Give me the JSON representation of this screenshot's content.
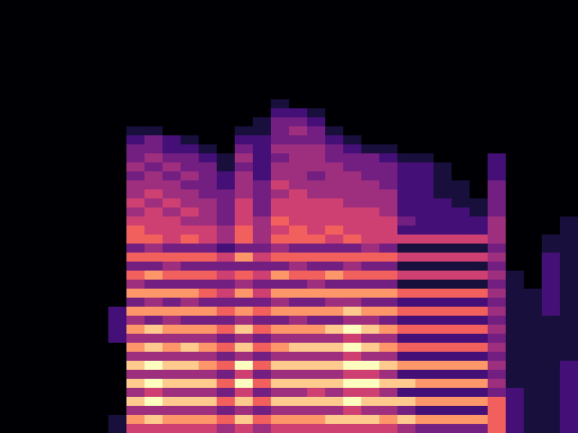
{
  "chart_data": {
    "type": "heatmap",
    "tick_labels": false,
    "zlim": [
      0,
      9
    ],
    "cells": [
      [
        0,
        0,
        0,
        0,
        0,
        0,
        0,
        0,
        0,
        0,
        0,
        0,
        0,
        0,
        0,
        0,
        0,
        0,
        0,
        0,
        0,
        0,
        0,
        0,
        0,
        0,
        0,
        0,
        0,
        0,
        0,
        0
      ],
      [
        0,
        0,
        0,
        0,
        0,
        0,
        0,
        0,
        0,
        0,
        0,
        0,
        0,
        0,
        0,
        0,
        0,
        0,
        0,
        0,
        0,
        0,
        0,
        0,
        0,
        0,
        0,
        0,
        0,
        0,
        0,
        0
      ],
      [
        0,
        0,
        0,
        0,
        0,
        0,
        0,
        0,
        0,
        0,
        0,
        0,
        0,
        0,
        0,
        0,
        0,
        0,
        0,
        0,
        0,
        0,
        0,
        0,
        0,
        0,
        0,
        0,
        0,
        0,
        0,
        0
      ],
      [
        0,
        0,
        0,
        0,
        0,
        0,
        0,
        0,
        0,
        0,
        0,
        0,
        0,
        0,
        0,
        0,
        0,
        0,
        0,
        0,
        0,
        0,
        0,
        0,
        0,
        0,
        0,
        0,
        0,
        0,
        0,
        0
      ],
      [
        0,
        0,
        0,
        0,
        0,
        0,
        0,
        0,
        0,
        0,
        0,
        0,
        0,
        0,
        0,
        0,
        0,
        0,
        0,
        0,
        0,
        0,
        0,
        0,
        0,
        0,
        0,
        0,
        0,
        0,
        0,
        0
      ],
      [
        0,
        0,
        0,
        0,
        0,
        0,
        0,
        0,
        0,
        0,
        0,
        0,
        0,
        0,
        0,
        0,
        0,
        0,
        0,
        0,
        0,
        0,
        0,
        0,
        0,
        0,
        0,
        0,
        0,
        0,
        0,
        0
      ],
      [
        0,
        0,
        0,
        0,
        0,
        0,
        0,
        0,
        0,
        0,
        0,
        0,
        0,
        0,
        0,
        0,
        0,
        0,
        0,
        0,
        0,
        0,
        0,
        0,
        0,
        0,
        0,
        0,
        0,
        0,
        0,
        0
      ],
      [
        0,
        0,
        0,
        0,
        0,
        0,
        0,
        0,
        0,
        0,
        0,
        0,
        0,
        0,
        0,
        0,
        0,
        0,
        0,
        0,
        0,
        0,
        0,
        0,
        0,
        0,
        0,
        0,
        0,
        0,
        0,
        0
      ],
      [
        0,
        0,
        0,
        0,
        0,
        0,
        0,
        0,
        0,
        0,
        0,
        0,
        0,
        0,
        0,
        0,
        0,
        0,
        0,
        0,
        0,
        0,
        0,
        0,
        0,
        0,
        0,
        0,
        0,
        0,
        0,
        0
      ],
      [
        0,
        0,
        0,
        0,
        0,
        0,
        0,
        0,
        0,
        0,
        0,
        0,
        0,
        0,
        0,
        0,
        0,
        0,
        0,
        0,
        0,
        0,
        0,
        0,
        0,
        0,
        0,
        0,
        0,
        0,
        0,
        0
      ],
      [
        0,
        0,
        0,
        0,
        0,
        0,
        0,
        0,
        0,
        0,
        0,
        0,
        0,
        0,
        0,
        0,
        0,
        0,
        0,
        0,
        0,
        0,
        0,
        0,
        0,
        0,
        0,
        0,
        0,
        0,
        0,
        0
      ],
      [
        0,
        0,
        0,
        0,
        0,
        0,
        0,
        0,
        0,
        0,
        0,
        0,
        0,
        0,
        0,
        1,
        0,
        0,
        0,
        0,
        0,
        0,
        0,
        0,
        0,
        0,
        0,
        0,
        0,
        0,
        0,
        0
      ],
      [
        0,
        0,
        0,
        0,
        0,
        0,
        0,
        0,
        0,
        0,
        0,
        0,
        0,
        0,
        0,
        2,
        2,
        1,
        0,
        0,
        0,
        0,
        0,
        0,
        0,
        0,
        0,
        0,
        0,
        0,
        0,
        0
      ],
      [
        0,
        0,
        0,
        0,
        0,
        0,
        0,
        0,
        0,
        0,
        0,
        0,
        0,
        0,
        1,
        3,
        3,
        2,
        0,
        0,
        0,
        0,
        0,
        0,
        0,
        0,
        0,
        0,
        0,
        0,
        0,
        0
      ],
      [
        0,
        0,
        0,
        0,
        0,
        0,
        0,
        1,
        1,
        0,
        0,
        0,
        0,
        1,
        1,
        3,
        4,
        3,
        1,
        0,
        0,
        0,
        0,
        0,
        0,
        0,
        0,
        0,
        0,
        0,
        0,
        0
      ],
      [
        0,
        0,
        0,
        0,
        0,
        0,
        0,
        2,
        3,
        2,
        1,
        0,
        0,
        2,
        2,
        3,
        3,
        3,
        2,
        1,
        0,
        0,
        0,
        0,
        0,
        0,
        0,
        0,
        0,
        0,
        0,
        0
      ],
      [
        0,
        0,
        0,
        0,
        0,
        0,
        0,
        3,
        3,
        2,
        2,
        1,
        0,
        3,
        2,
        4,
        4,
        4,
        3,
        2,
        1,
        1,
        0,
        0,
        0,
        0,
        0,
        0,
        0,
        0,
        0,
        0
      ],
      [
        0,
        0,
        0,
        0,
        0,
        0,
        0,
        3,
        4,
        3,
        3,
        2,
        1,
        4,
        2,
        3,
        4,
        4,
        3,
        3,
        3,
        2,
        1,
        1,
        0,
        0,
        0,
        2,
        0,
        0,
        0,
        0
      ],
      [
        0,
        0,
        0,
        0,
        0,
        0,
        0,
        4,
        3,
        4,
        3,
        3,
        1,
        3,
        2,
        4,
        4,
        4,
        4,
        3,
        3,
        3,
        2,
        2,
        1,
        0,
        0,
        2,
        0,
        0,
        0,
        0
      ],
      [
        0,
        0,
        0,
        0,
        0,
        0,
        0,
        3,
        4,
        3,
        4,
        3,
        2,
        4,
        2,
        4,
        4,
        3,
        4,
        4,
        3,
        3,
        2,
        2,
        1,
        0,
        0,
        2,
        0,
        0,
        0,
        0
      ],
      [
        0,
        0,
        0,
        0,
        0,
        0,
        0,
        4,
        4,
        4,
        3,
        3,
        2,
        4,
        3,
        5,
        4,
        4,
        4,
        4,
        4,
        3,
        2,
        2,
        1,
        1,
        0,
        3,
        0,
        0,
        0,
        0
      ],
      [
        0,
        0,
        0,
        0,
        0,
        0,
        0,
        4,
        5,
        4,
        4,
        3,
        3,
        4,
        3,
        4,
        5,
        4,
        4,
        4,
        4,
        4,
        2,
        2,
        1,
        1,
        0,
        3,
        0,
        0,
        0,
        0
      ],
      [
        0,
        0,
        0,
        0,
        0,
        0,
        0,
        5,
        4,
        5,
        4,
        4,
        3,
        5,
        3,
        5,
        5,
        5,
        5,
        4,
        4,
        4,
        2,
        2,
        2,
        1,
        1,
        3,
        0,
        0,
        0,
        0
      ],
      [
        0,
        0,
        0,
        0,
        0,
        0,
        0,
        4,
        5,
        4,
        5,
        4,
        3,
        5,
        3,
        5,
        5,
        5,
        5,
        5,
        5,
        4,
        2,
        2,
        2,
        2,
        1,
        3,
        0,
        0,
        0,
        0
      ],
      [
        0,
        0,
        0,
        0,
        0,
        0,
        0,
        5,
        5,
        5,
        4,
        4,
        3,
        5,
        4,
        6,
        5,
        5,
        5,
        5,
        5,
        5,
        3,
        2,
        2,
        2,
        2,
        4,
        0,
        0,
        0,
        1
      ],
      [
        0,
        0,
        0,
        0,
        0,
        0,
        0,
        6,
        5,
        5,
        5,
        5,
        4,
        6,
        4,
        5,
        6,
        5,
        6,
        5,
        5,
        5,
        2,
        2,
        2,
        2,
        2,
        4,
        0,
        0,
        0,
        1
      ],
      [
        0,
        0,
        0,
        0,
        0,
        0,
        0,
        6,
        6,
        5,
        6,
        5,
        4,
        6,
        4,
        6,
        6,
        6,
        5,
        6,
        5,
        5,
        5,
        5,
        5,
        5,
        5,
        4,
        0,
        0,
        1,
        1
      ],
      [
        0,
        0,
        0,
        0,
        0,
        0,
        0,
        3,
        4,
        3,
        3,
        3,
        2,
        3,
        3,
        4,
        3,
        3,
        3,
        3,
        4,
        3,
        1,
        1,
        1,
        1,
        1,
        3,
        0,
        0,
        1,
        1
      ],
      [
        0,
        0,
        0,
        0,
        0,
        0,
        0,
        6,
        6,
        6,
        6,
        6,
        5,
        7,
        5,
        6,
        6,
        6,
        6,
        6,
        6,
        6,
        5,
        5,
        5,
        5,
        5,
        4,
        0,
        0,
        2,
        1
      ],
      [
        0,
        0,
        0,
        0,
        0,
        0,
        0,
        3,
        3,
        4,
        3,
        3,
        3,
        3,
        3,
        3,
        4,
        3,
        3,
        4,
        3,
        3,
        1,
        1,
        1,
        1,
        1,
        3,
        0,
        0,
        2,
        1
      ],
      [
        0,
        0,
        0,
        0,
        0,
        0,
        0,
        6,
        7,
        6,
        6,
        6,
        5,
        6,
        5,
        7,
        6,
        6,
        7,
        6,
        6,
        6,
        5,
        5,
        5,
        5,
        5,
        4,
        1,
        0,
        2,
        1
      ],
      [
        0,
        0,
        0,
        0,
        0,
        0,
        0,
        4,
        3,
        3,
        3,
        3,
        3,
        4,
        3,
        3,
        3,
        4,
        3,
        3,
        3,
        3,
        1,
        1,
        1,
        1,
        1,
        3,
        1,
        0,
        2,
        1
      ],
      [
        0,
        0,
        0,
        0,
        0,
        0,
        0,
        7,
        7,
        7,
        7,
        6,
        5,
        7,
        5,
        7,
        7,
        7,
        7,
        7,
        7,
        7,
        6,
        6,
        6,
        6,
        6,
        4,
        1,
        1,
        2,
        1
      ],
      [
        0,
        0,
        0,
        0,
        0,
        0,
        0,
        3,
        4,
        3,
        4,
        3,
        3,
        3,
        3,
        4,
        3,
        3,
        4,
        4,
        3,
        3,
        2,
        2,
        2,
        2,
        2,
        3,
        1,
        1,
        2,
        1
      ],
      [
        0,
        0,
        0,
        0,
        0,
        0,
        2,
        7,
        7,
        7,
        7,
        7,
        6,
        7,
        6,
        7,
        7,
        7,
        7,
        8,
        7,
        7,
        6,
        6,
        6,
        6,
        6,
        4,
        1,
        1,
        2,
        1
      ],
      [
        0,
        0,
        0,
        0,
        0,
        0,
        2,
        4,
        3,
        4,
        3,
        3,
        3,
        4,
        3,
        3,
        4,
        3,
        3,
        4,
        4,
        3,
        2,
        2,
        2,
        2,
        2,
        3,
        1,
        1,
        1,
        1
      ],
      [
        0,
        0,
        0,
        0,
        0,
        0,
        2,
        7,
        8,
        7,
        7,
        7,
        6,
        8,
        6,
        7,
        7,
        7,
        8,
        9,
        8,
        7,
        6,
        6,
        6,
        6,
        6,
        4,
        1,
        1,
        1,
        1
      ],
      [
        0,
        0,
        0,
        0,
        0,
        0,
        2,
        4,
        4,
        4,
        4,
        4,
        3,
        4,
        3,
        4,
        4,
        4,
        4,
        5,
        4,
        4,
        2,
        2,
        2,
        2,
        2,
        3,
        1,
        1,
        1,
        1
      ],
      [
        0,
        0,
        0,
        0,
        0,
        0,
        0,
        7,
        8,
        7,
        8,
        7,
        6,
        8,
        6,
        7,
        8,
        8,
        8,
        9,
        8,
        7,
        6,
        6,
        6,
        6,
        6,
        4,
        1,
        1,
        1,
        1
      ],
      [
        0,
        0,
        0,
        0,
        0,
        0,
        0,
        4,
        4,
        4,
        4,
        4,
        3,
        4,
        3,
        4,
        4,
        4,
        4,
        5,
        4,
        4,
        2,
        2,
        2,
        2,
        2,
        3,
        1,
        1,
        1,
        1
      ],
      [
        0,
        0,
        0,
        0,
        0,
        0,
        0,
        8,
        9,
        8,
        8,
        7,
        6,
        9,
        6,
        8,
        8,
        8,
        8,
        9,
        9,
        8,
        7,
        7,
        7,
        7,
        7,
        4,
        1,
        1,
        1,
        2
      ],
      [
        0,
        0,
        0,
        0,
        0,
        0,
        0,
        4,
        4,
        4,
        4,
        4,
        3,
        5,
        3,
        4,
        4,
        4,
        4,
        5,
        5,
        4,
        2,
        2,
        2,
        2,
        2,
        3,
        1,
        1,
        1,
        2
      ],
      [
        0,
        0,
        0,
        0,
        0,
        0,
        0,
        8,
        9,
        8,
        8,
        8,
        6,
        9,
        6,
        8,
        8,
        8,
        8,
        9,
        9,
        8,
        8,
        7,
        7,
        7,
        7,
        4,
        1,
        1,
        1,
        2
      ],
      [
        0,
        0,
        0,
        0,
        0,
        0,
        0,
        4,
        5,
        4,
        4,
        4,
        3,
        5,
        3,
        4,
        4,
        5,
        4,
        5,
        5,
        4,
        2,
        2,
        2,
        2,
        2,
        3,
        2,
        1,
        1,
        2
      ],
      [
        0,
        0,
        0,
        0,
        0,
        0,
        0,
        8,
        9,
        8,
        8,
        8,
        6,
        8,
        6,
        8,
        8,
        8,
        8,
        9,
        8,
        8,
        8,
        7,
        7,
        7,
        7,
        6,
        2,
        1,
        1,
        2
      ],
      [
        0,
        0,
        0,
        0,
        0,
        0,
        0,
        4,
        4,
        4,
        4,
        4,
        3,
        4,
        3,
        4,
        4,
        4,
        4,
        5,
        4,
        4,
        3,
        2,
        2,
        2,
        2,
        6,
        2,
        1,
        1,
        2
      ],
      [
        0,
        0,
        0,
        0,
        0,
        0,
        1,
        7,
        8,
        7,
        7,
        7,
        6,
        8,
        6,
        7,
        7,
        7,
        8,
        8,
        8,
        7,
        8,
        7,
        7,
        7,
        7,
        6,
        2,
        1,
        1,
        2
      ],
      [
        0,
        0,
        0,
        0,
        0,
        0,
        1,
        5,
        5,
        5,
        5,
        5,
        4,
        5,
        4,
        5,
        5,
        5,
        5,
        5,
        5,
        5,
        4,
        3,
        3,
        3,
        3,
        6,
        2,
        1,
        1,
        2
      ]
    ]
  }
}
